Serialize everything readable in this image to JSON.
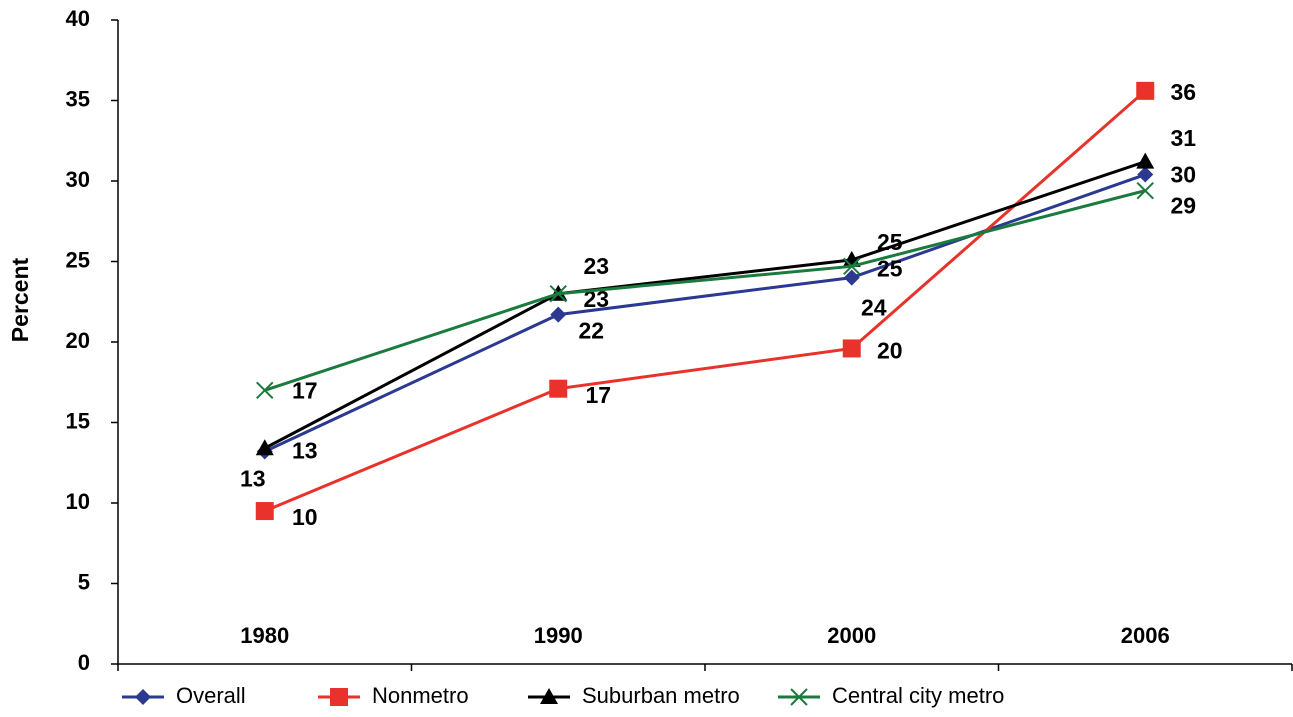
{
  "chart_data": {
    "type": "line",
    "y_label": "Percent",
    "categories": [
      "1980",
      "1990",
      "2000",
      "2006"
    ],
    "ylim": [
      0,
      40
    ],
    "yticks": [
      0,
      5,
      10,
      15,
      20,
      25,
      30,
      35,
      40
    ],
    "legend": "bottom",
    "series": [
      {
        "name": "Overall",
        "color": "#2b3990",
        "marker": "diamond",
        "values": [
          13.2,
          21.7,
          24.0,
          30.4
        ],
        "value_labels": [
          "13",
          "22",
          "24",
          "30"
        ]
      },
      {
        "name": "Nonmetro",
        "color": "#e8322b",
        "marker": "square",
        "values": [
          9.5,
          17.1,
          19.6,
          35.6
        ],
        "value_labels": [
          "10",
          "17",
          "20",
          "36"
        ]
      },
      {
        "name": "Suburban metro",
        "color": "#000000",
        "marker": "triangle",
        "values": [
          13.4,
          23.0,
          25.1,
          31.2
        ],
        "value_labels": [
          "13",
          "23",
          "25",
          "31"
        ]
      },
      {
        "name": "Central city metro",
        "color": "#1b7a3e",
        "marker": "x",
        "values": [
          17.0,
          23.0,
          24.7,
          29.4
        ],
        "value_labels": [
          "17",
          "23",
          "25",
          "29"
        ]
      }
    ]
  }
}
